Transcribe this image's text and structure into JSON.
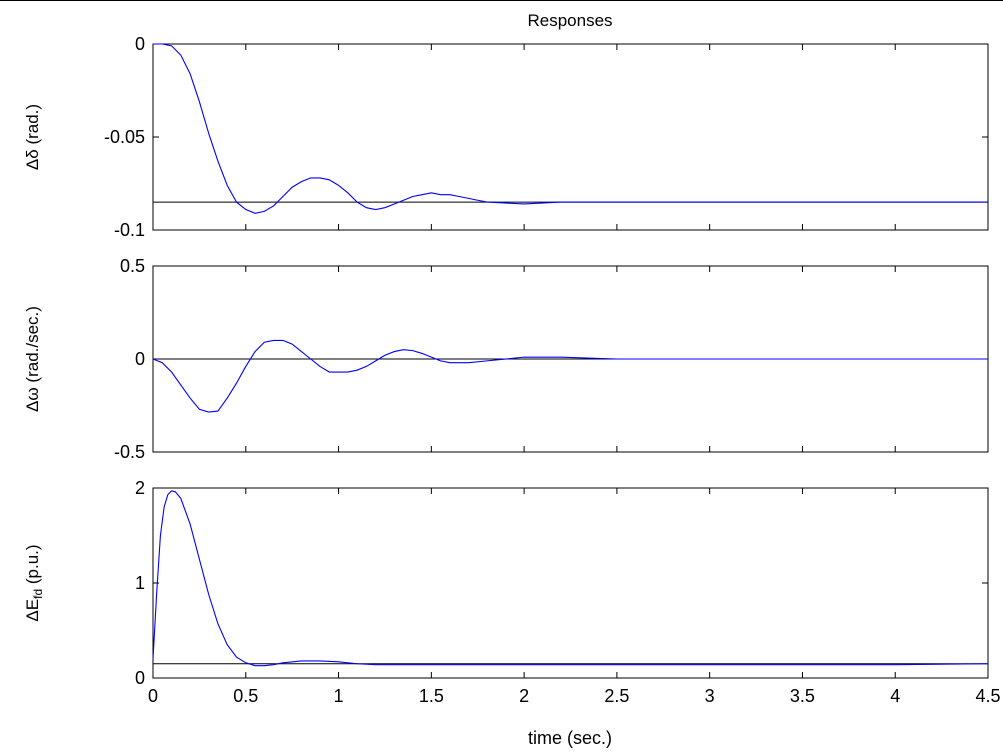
{
  "title": "Responses",
  "xlabel": "time (sec.)",
  "colors": {
    "series": "#0000ff",
    "reference": "#000000",
    "axes": "#000000"
  },
  "chart_data": [
    {
      "type": "line",
      "ylabel": "Δδ (rad.)",
      "ylabel_parts": {
        "main": "Δδ (rad.)",
        "sub": ""
      },
      "xlim": [
        0,
        4.5
      ],
      "ylim": [
        -0.1,
        0
      ],
      "yticks": [
        0,
        -0.05,
        -0.1
      ],
      "ytick_labels": [
        "0",
        "-0.05",
        "-0.1"
      ],
      "reference_y": -0.085,
      "series": [
        {
          "x": [
            0,
            0.05,
            0.1,
            0.15,
            0.2,
            0.25,
            0.3,
            0.35,
            0.4,
            0.45,
            0.5,
            0.55,
            0.6,
            0.65,
            0.7,
            0.75,
            0.8,
            0.85,
            0.9,
            0.95,
            1.0,
            1.05,
            1.1,
            1.15,
            1.2,
            1.25,
            1.3,
            1.35,
            1.4,
            1.45,
            1.5,
            1.55,
            1.6,
            1.65,
            1.7,
            1.75,
            1.8,
            2.0,
            2.2,
            2.5,
            3.0,
            3.5,
            4.0,
            4.5
          ],
          "y": [
            0,
            0,
            -0.001,
            -0.006,
            -0.016,
            -0.031,
            -0.048,
            -0.063,
            -0.076,
            -0.085,
            -0.089,
            -0.091,
            -0.09,
            -0.087,
            -0.082,
            -0.077,
            -0.074,
            -0.072,
            -0.072,
            -0.073,
            -0.076,
            -0.08,
            -0.085,
            -0.088,
            -0.089,
            -0.088,
            -0.086,
            -0.084,
            -0.082,
            -0.081,
            -0.08,
            -0.081,
            -0.081,
            -0.082,
            -0.083,
            -0.084,
            -0.085,
            -0.086,
            -0.085,
            -0.085,
            -0.085,
            -0.085,
            -0.085,
            -0.085
          ]
        }
      ]
    },
    {
      "type": "line",
      "ylabel": "Δω   (rad./sec.)",
      "ylabel_parts": {
        "main": "Δω   (rad./sec.)",
        "sub": ""
      },
      "xlim": [
        0,
        4.5
      ],
      "ylim": [
        -0.5,
        0.5
      ],
      "yticks": [
        0.5,
        0,
        -0.5
      ],
      "ytick_labels": [
        "0.5",
        "0",
        "-0.5"
      ],
      "reference_y": 0,
      "series": [
        {
          "x": [
            0,
            0.05,
            0.1,
            0.15,
            0.2,
            0.25,
            0.3,
            0.35,
            0.4,
            0.45,
            0.5,
            0.55,
            0.6,
            0.65,
            0.7,
            0.75,
            0.8,
            0.85,
            0.9,
            0.95,
            1.0,
            1.05,
            1.1,
            1.15,
            1.2,
            1.25,
            1.3,
            1.35,
            1.4,
            1.45,
            1.5,
            1.55,
            1.6,
            1.7,
            1.8,
            2.0,
            2.2,
            2.5,
            3.0,
            3.5,
            4.0,
            4.5
          ],
          "y": [
            0,
            -0.02,
            -0.07,
            -0.14,
            -0.21,
            -0.27,
            -0.285,
            -0.28,
            -0.21,
            -0.13,
            -0.04,
            0.04,
            0.09,
            0.1,
            0.1,
            0.08,
            0.04,
            0.0,
            -0.04,
            -0.07,
            -0.07,
            -0.07,
            -0.06,
            -0.04,
            -0.01,
            0.02,
            0.04,
            0.05,
            0.045,
            0.03,
            0.01,
            -0.01,
            -0.02,
            -0.02,
            -0.01,
            0.01,
            0.01,
            0,
            0,
            0,
            0,
            0
          ]
        }
      ]
    },
    {
      "type": "line",
      "ylabel": "ΔEfd   (p.u.)",
      "ylabel_parts": {
        "main": "ΔE",
        "sub": "fd",
        "suffix": "   (p.u.)"
      },
      "xlim": [
        0,
        4.5
      ],
      "ylim": [
        0,
        2
      ],
      "yticks": [
        2,
        1,
        0
      ],
      "ytick_labels": [
        "2",
        "1",
        "0"
      ],
      "reference_y": 0.15,
      "series": [
        {
          "x": [
            0,
            0.02,
            0.04,
            0.06,
            0.08,
            0.1,
            0.12,
            0.15,
            0.2,
            0.25,
            0.3,
            0.35,
            0.4,
            0.45,
            0.5,
            0.55,
            0.6,
            0.65,
            0.7,
            0.8,
            0.9,
            1.0,
            1.1,
            1.2,
            1.5,
            2.0,
            2.5,
            3.0,
            3.5,
            4.0,
            4.5
          ],
          "y": [
            0.2,
            0.9,
            1.5,
            1.8,
            1.93,
            1.97,
            1.96,
            1.89,
            1.62,
            1.25,
            0.88,
            0.57,
            0.35,
            0.22,
            0.16,
            0.13,
            0.13,
            0.14,
            0.16,
            0.18,
            0.18,
            0.17,
            0.15,
            0.14,
            0.14,
            0.14,
            0.14,
            0.14,
            0.14,
            0.14,
            0.15
          ]
        }
      ]
    }
  ],
  "xticks": [
    0,
    0.5,
    1,
    1.5,
    2,
    2.5,
    3,
    3.5,
    4,
    4.5
  ],
  "xtick_labels": [
    "0",
    "0.5",
    "1",
    "1.5",
    "2",
    "2.5",
    "3",
    "3.5",
    "4",
    "4.5"
  ]
}
